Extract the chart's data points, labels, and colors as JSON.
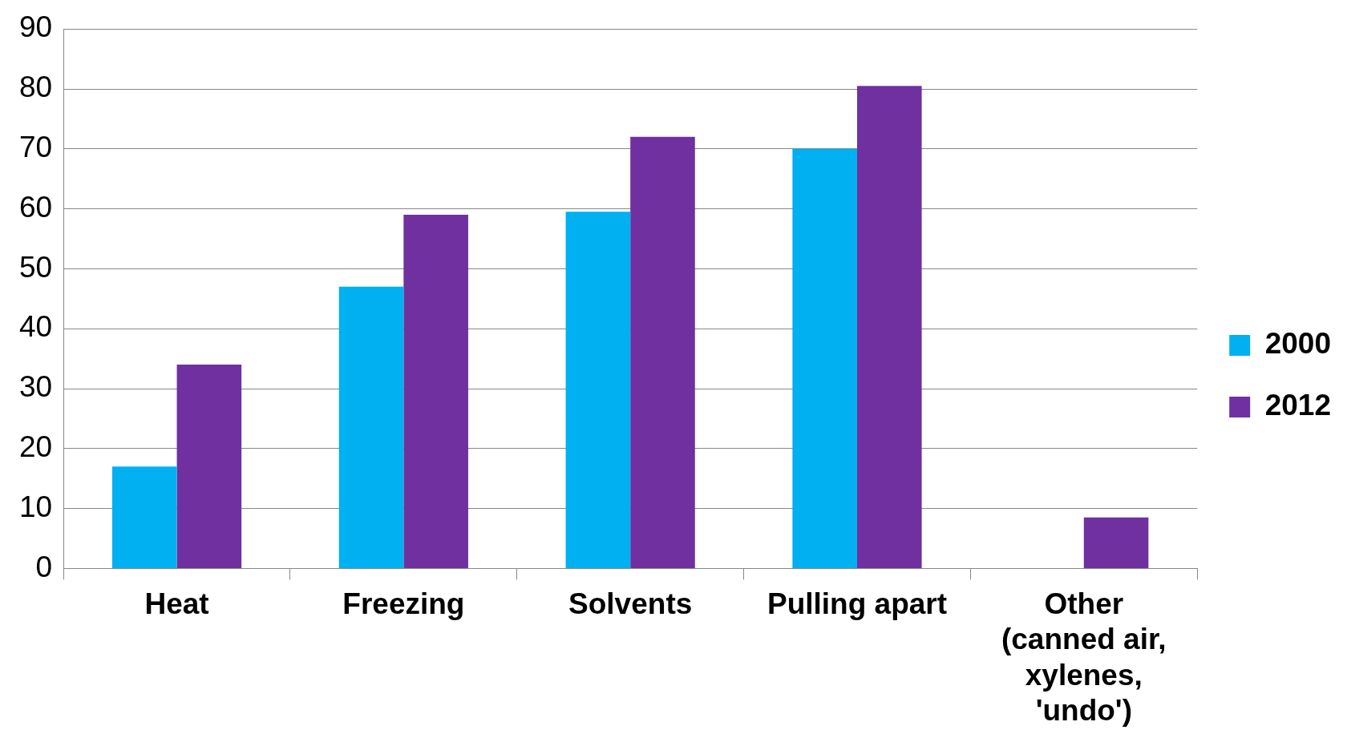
{
  "chart_data": {
    "type": "bar",
    "categories": [
      "Heat",
      "Freezing",
      "Solvents",
      "Pulling apart",
      "Other (canned air, xylenes, 'undo')"
    ],
    "series": [
      {
        "name": "2000",
        "color": "#00b0f0",
        "values": [
          17,
          47,
          59.5,
          70,
          0
        ]
      },
      {
        "name": "2012",
        "color": "#7030a0",
        "values": [
          34,
          59,
          72,
          80.5,
          8.5
        ]
      }
    ],
    "ylim": [
      0,
      90
    ],
    "yticks": [
      0,
      10,
      20,
      30,
      40,
      50,
      60,
      70,
      80,
      90
    ],
    "grid": "y",
    "legend": "right"
  }
}
